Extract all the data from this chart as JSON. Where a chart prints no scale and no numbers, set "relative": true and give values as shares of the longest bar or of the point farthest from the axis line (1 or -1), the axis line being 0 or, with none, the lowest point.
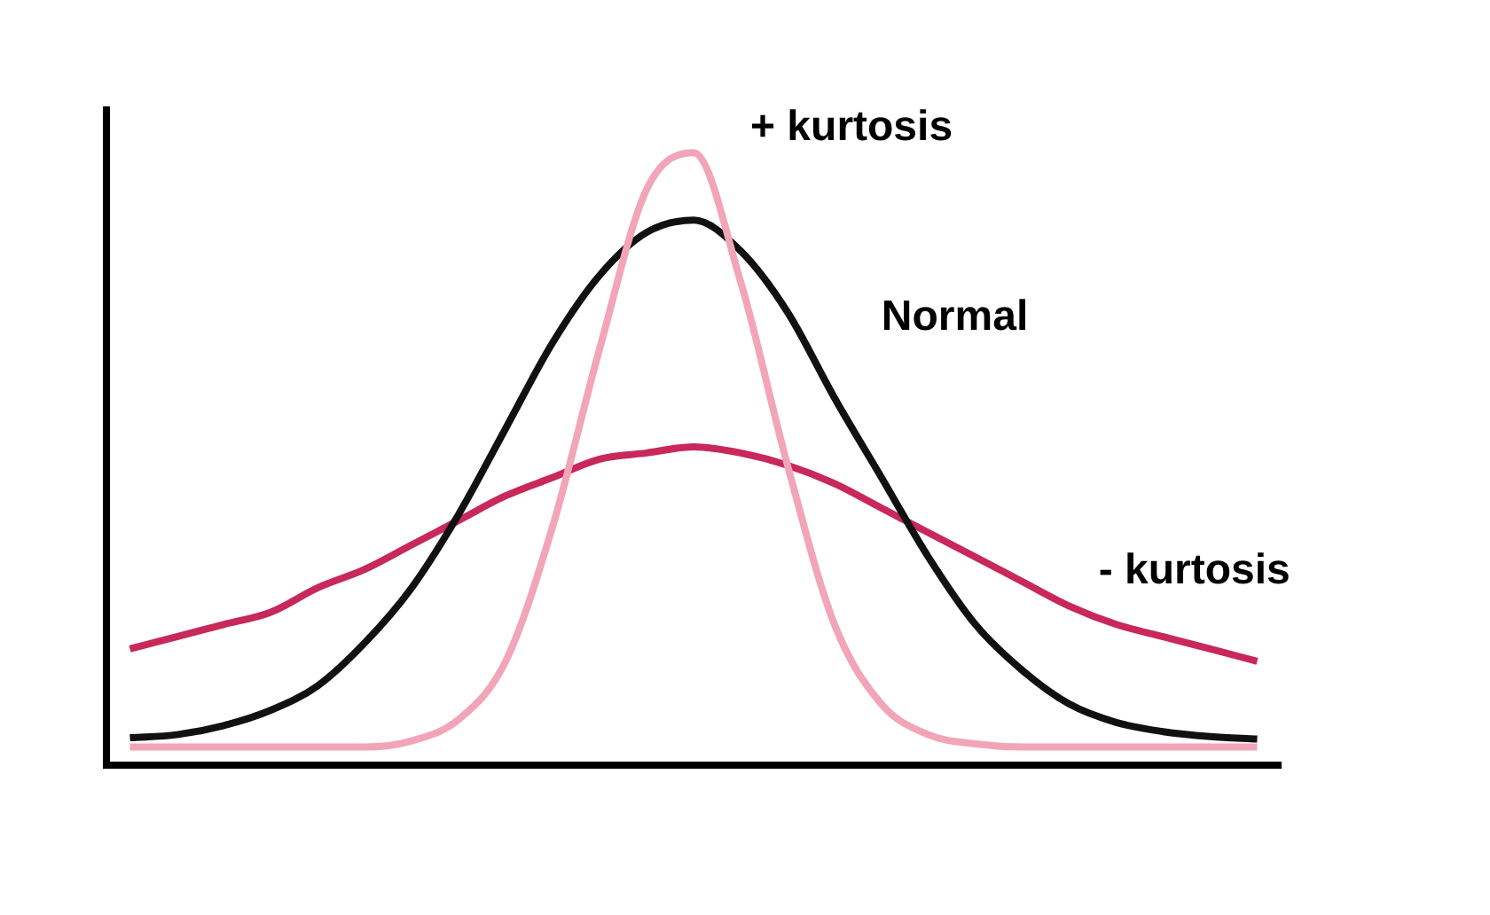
{
  "chart_data": {
    "type": "line",
    "relative": true,
    "categories": [
      null,
      null,
      null,
      null,
      null,
      null,
      null,
      null,
      null,
      null,
      null,
      null,
      null,
      null,
      null,
      null,
      null,
      null,
      null,
      null,
      null,
      null,
      null,
      null,
      null
    ],
    "legend": false,
    "grid": false,
    "marker": "none",
    "line_style": "solid",
    "series": [
      {
        "name": "+ kurtosis",
        "color": "#f2a5b8",
        "values": [
          0.03,
          0.03,
          0.03,
          0.03,
          0.03,
          0.03,
          0.04,
          0.075,
          0.17,
          0.39,
          0.68,
          0.94,
          1,
          0.79,
          0.49,
          0.23,
          0.1,
          0.05,
          0.035,
          0.03,
          0.03,
          0.03,
          0.03,
          0.03,
          0.03
        ]
      },
      {
        "name": "Normal",
        "color": "#111111",
        "values": [
          0.045,
          0.05,
          0.065,
          0.09,
          0.13,
          0.2,
          0.29,
          0.41,
          0.55,
          0.69,
          0.8,
          0.87,
          0.89,
          0.84,
          0.74,
          0.6,
          0.47,
          0.34,
          0.23,
          0.155,
          0.1,
          0.07,
          0.055,
          0.047,
          0.043
        ]
      },
      {
        "name": "- kurtosis",
        "color": "#c8285a",
        "values": [
          0.19,
          0.21,
          0.23,
          0.25,
          0.29,
          0.32,
          0.36,
          0.4,
          0.44,
          0.47,
          0.5,
          0.51,
          0.52,
          0.51,
          0.49,
          0.46,
          0.42,
          0.38,
          0.34,
          0.3,
          0.26,
          0.23,
          0.21,
          0.19,
          0.17
        ]
      }
    ]
  }
}
